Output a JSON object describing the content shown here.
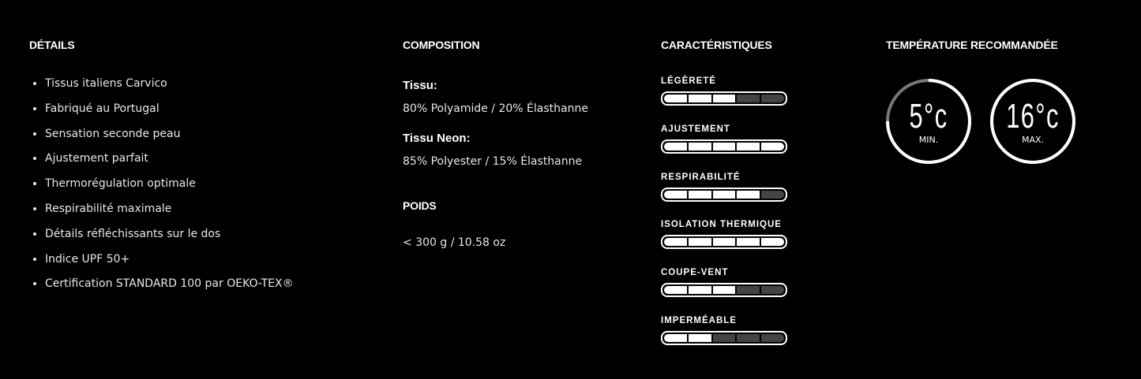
{
  "details": {
    "title": "DÉTAILS",
    "items": [
      "Tissus italiens Carvico",
      "Fabriqué au Portugal",
      "Sensation seconde peau",
      "Ajustement parfait",
      "Thermorégulation optimale",
      "Respirabilité maximale",
      "Détails réfléchissants sur le dos",
      "Indice UPF 50+",
      "Certification STANDARD 100 par OEKO-TEX®"
    ]
  },
  "composition": {
    "title": "COMPOSITION",
    "fabric_label": "Tissu:",
    "fabric_value": "80% Polyamide / 20% Élasthanne",
    "neon_label": "Tissu Neon:",
    "neon_value": "85% Polyester / 15% Élasthanne",
    "weight_title": "POIDS",
    "weight_value": "< 300 g / 10.58 oz"
  },
  "characteristics": {
    "title": "CARACTÉRISTIQUES",
    "max": 5,
    "items": [
      {
        "label": "LÉGÈRETÉ",
        "value": 3
      },
      {
        "label": "AJUSTEMENT",
        "value": 5
      },
      {
        "label": "RESPIRABILITÉ",
        "value": 4
      },
      {
        "label": "ISOLATION THERMIQUE",
        "value": 5
      },
      {
        "label": "COUPE-VENT",
        "value": 3
      },
      {
        "label": "IMPERMÉABLE",
        "value": 2
      }
    ]
  },
  "temperature": {
    "title": "TEMPÉRATURE RECOMMANDÉE",
    "min": {
      "value": "5°c",
      "label": "MIN.",
      "fill": 0.75
    },
    "max": {
      "value": "16°c",
      "label": "MAX.",
      "fill": 1.0
    }
  }
}
